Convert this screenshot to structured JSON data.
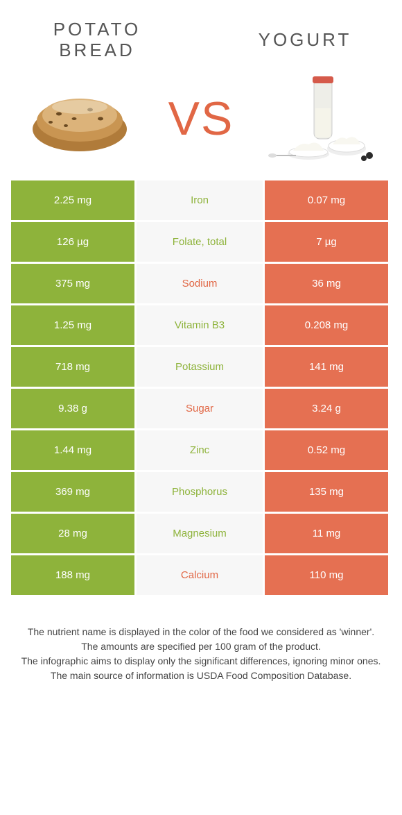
{
  "left_food": "POTATO BREAD",
  "right_food": "YOGURT",
  "vs": "VS",
  "colors": {
    "left_cell": "#8eb33b",
    "mid_cell": "#f7f7f7",
    "right_cell": "#e57052",
    "nutrient_left_win": "#8eb33b",
    "nutrient_right_win": "#e16745",
    "title": "#555555",
    "vs": "#e16745"
  },
  "rows": [
    {
      "left": "2.25 mg",
      "nutrient": "Iron",
      "right": "0.07 mg",
      "winner": "left"
    },
    {
      "left": "126 µg",
      "nutrient": "Folate, total",
      "right": "7 µg",
      "winner": "left"
    },
    {
      "left": "375 mg",
      "nutrient": "Sodium",
      "right": "36 mg",
      "winner": "right"
    },
    {
      "left": "1.25 mg",
      "nutrient": "Vitamin B3",
      "right": "0.208 mg",
      "winner": "left"
    },
    {
      "left": "718 mg",
      "nutrient": "Potassium",
      "right": "141 mg",
      "winner": "left"
    },
    {
      "left": "9.38 g",
      "nutrient": "Sugar",
      "right": "3.24 g",
      "winner": "right"
    },
    {
      "left": "1.44 mg",
      "nutrient": "Zinc",
      "right": "0.52 mg",
      "winner": "left"
    },
    {
      "left": "369 mg",
      "nutrient": "Phosphorus",
      "right": "135 mg",
      "winner": "left"
    },
    {
      "left": "28 mg",
      "nutrient": "Magnesium",
      "right": "11 mg",
      "winner": "left"
    },
    {
      "left": "188 mg",
      "nutrient": "Calcium",
      "right": "110 mg",
      "winner": "right"
    }
  ],
  "footnote": {
    "l1": "The nutrient name is displayed in the color of the food we considered as 'winner'.",
    "l2": "The amounts are specified per 100 gram of the product.",
    "l3": "The infographic aims to display only the significant differences, ignoring minor ones.",
    "l4": "The main source of information is USDA Food Composition Database."
  }
}
